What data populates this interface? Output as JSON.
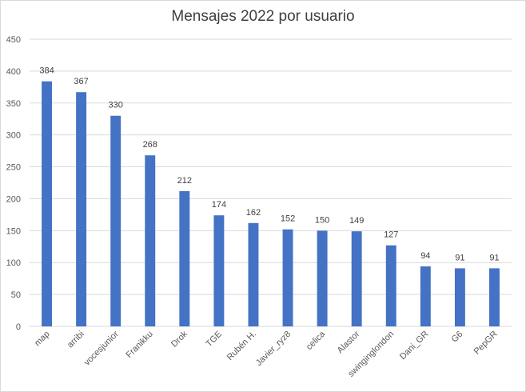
{
  "chart_data": {
    "type": "bar",
    "title": "Mensajes 2022 por usuario",
    "xlabel": "",
    "ylabel": "",
    "categories": [
      "map",
      "arribi",
      "vocesjunior",
      "Franikku",
      "Drok",
      "TGE",
      "Rubén H.",
      "Javier_ryz8",
      "celica",
      "Alastor",
      "swinginglondon",
      "Dani_GR",
      "G6",
      "PepGR"
    ],
    "values": [
      384,
      367,
      330,
      268,
      212,
      174,
      162,
      152,
      150,
      149,
      127,
      94,
      91,
      91
    ],
    "ylim": [
      0,
      450
    ],
    "yticks": [
      0,
      50,
      100,
      150,
      200,
      250,
      300,
      350,
      400,
      450
    ],
    "grid": true,
    "legend": "none",
    "data_labels": true,
    "bar_color": "#4472c4",
    "grid_color": "#d9d9d9"
  }
}
